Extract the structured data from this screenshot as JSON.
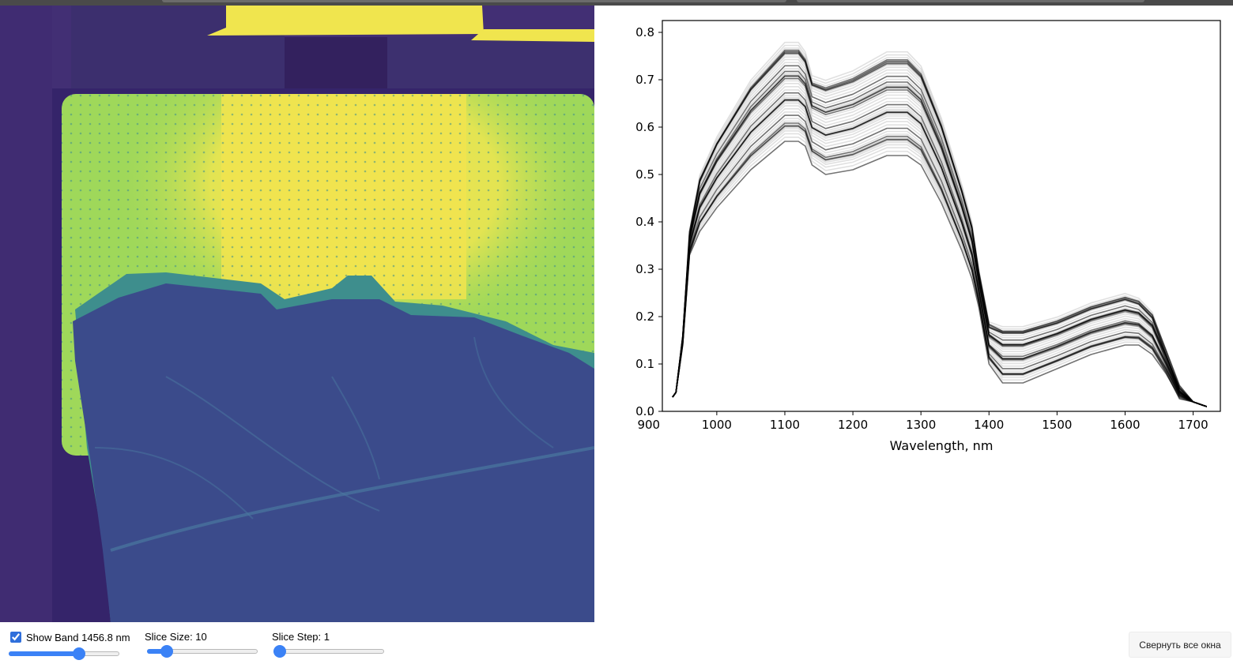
{
  "image_view": {
    "colors": {
      "background": "#422f74",
      "leaf": "#3d4b8a",
      "paper": "#9fd85a",
      "bright": "#f1e44f"
    }
  },
  "chart_data": {
    "type": "line",
    "title": "",
    "xlabel": "Wavelength, nm",
    "ylabel": "",
    "xlim": [
      920,
      1740
    ],
    "ylim": [
      0.0,
      0.825
    ],
    "xticks": [
      900,
      1000,
      1100,
      1200,
      1300,
      1400,
      1500,
      1600,
      1700
    ],
    "yticks": [
      0.0,
      0.1,
      0.2,
      0.3,
      0.4,
      0.5,
      0.6,
      0.7,
      0.8
    ],
    "xtick_labels": [
      "900",
      "1000",
      "1100",
      "1200",
      "1300",
      "1400",
      "1500",
      "1600",
      "1700"
    ],
    "ytick_labels": [
      "0.0",
      "0.1",
      "0.2",
      "0.3",
      "0.4",
      "0.5",
      "0.6",
      "0.7",
      "0.8"
    ],
    "grid": false,
    "legend": "none",
    "series_color": "#000000",
    "series_count": 60,
    "envelope": {
      "x": [
        935,
        940,
        950,
        960,
        975,
        1000,
        1050,
        1100,
        1120,
        1130,
        1140,
        1160,
        1200,
        1250,
        1280,
        1300,
        1330,
        1360,
        1375,
        1385,
        1400,
        1420,
        1450,
        1500,
        1550,
        1600,
        1620,
        1640,
        1660,
        1680,
        1700,
        1720
      ],
      "upper": [
        0.03,
        0.04,
        0.16,
        0.38,
        0.5,
        0.58,
        0.7,
        0.78,
        0.78,
        0.76,
        0.71,
        0.7,
        0.72,
        0.76,
        0.76,
        0.73,
        0.62,
        0.48,
        0.4,
        0.3,
        0.19,
        0.18,
        0.18,
        0.2,
        0.23,
        0.25,
        0.24,
        0.21,
        0.13,
        0.05,
        0.02,
        0.01
      ],
      "lower": [
        0.03,
        0.04,
        0.14,
        0.33,
        0.38,
        0.43,
        0.51,
        0.57,
        0.57,
        0.56,
        0.52,
        0.5,
        0.51,
        0.54,
        0.54,
        0.52,
        0.44,
        0.34,
        0.28,
        0.22,
        0.1,
        0.06,
        0.06,
        0.09,
        0.12,
        0.14,
        0.14,
        0.12,
        0.08,
        0.03,
        0.02,
        0.01
      ]
    }
  },
  "controls": {
    "band": {
      "label": "Show Band 1456.8 nm",
      "checked": true,
      "value_fraction": 0.65
    },
    "slice_size": {
      "label": "Slice Size: 10",
      "value_fraction": 0.14
    },
    "slice_step": {
      "label": "Slice Step: 1",
      "value_fraction": 0.0
    }
  },
  "buttons": {
    "minimize_all": "Свернуть все окна"
  }
}
